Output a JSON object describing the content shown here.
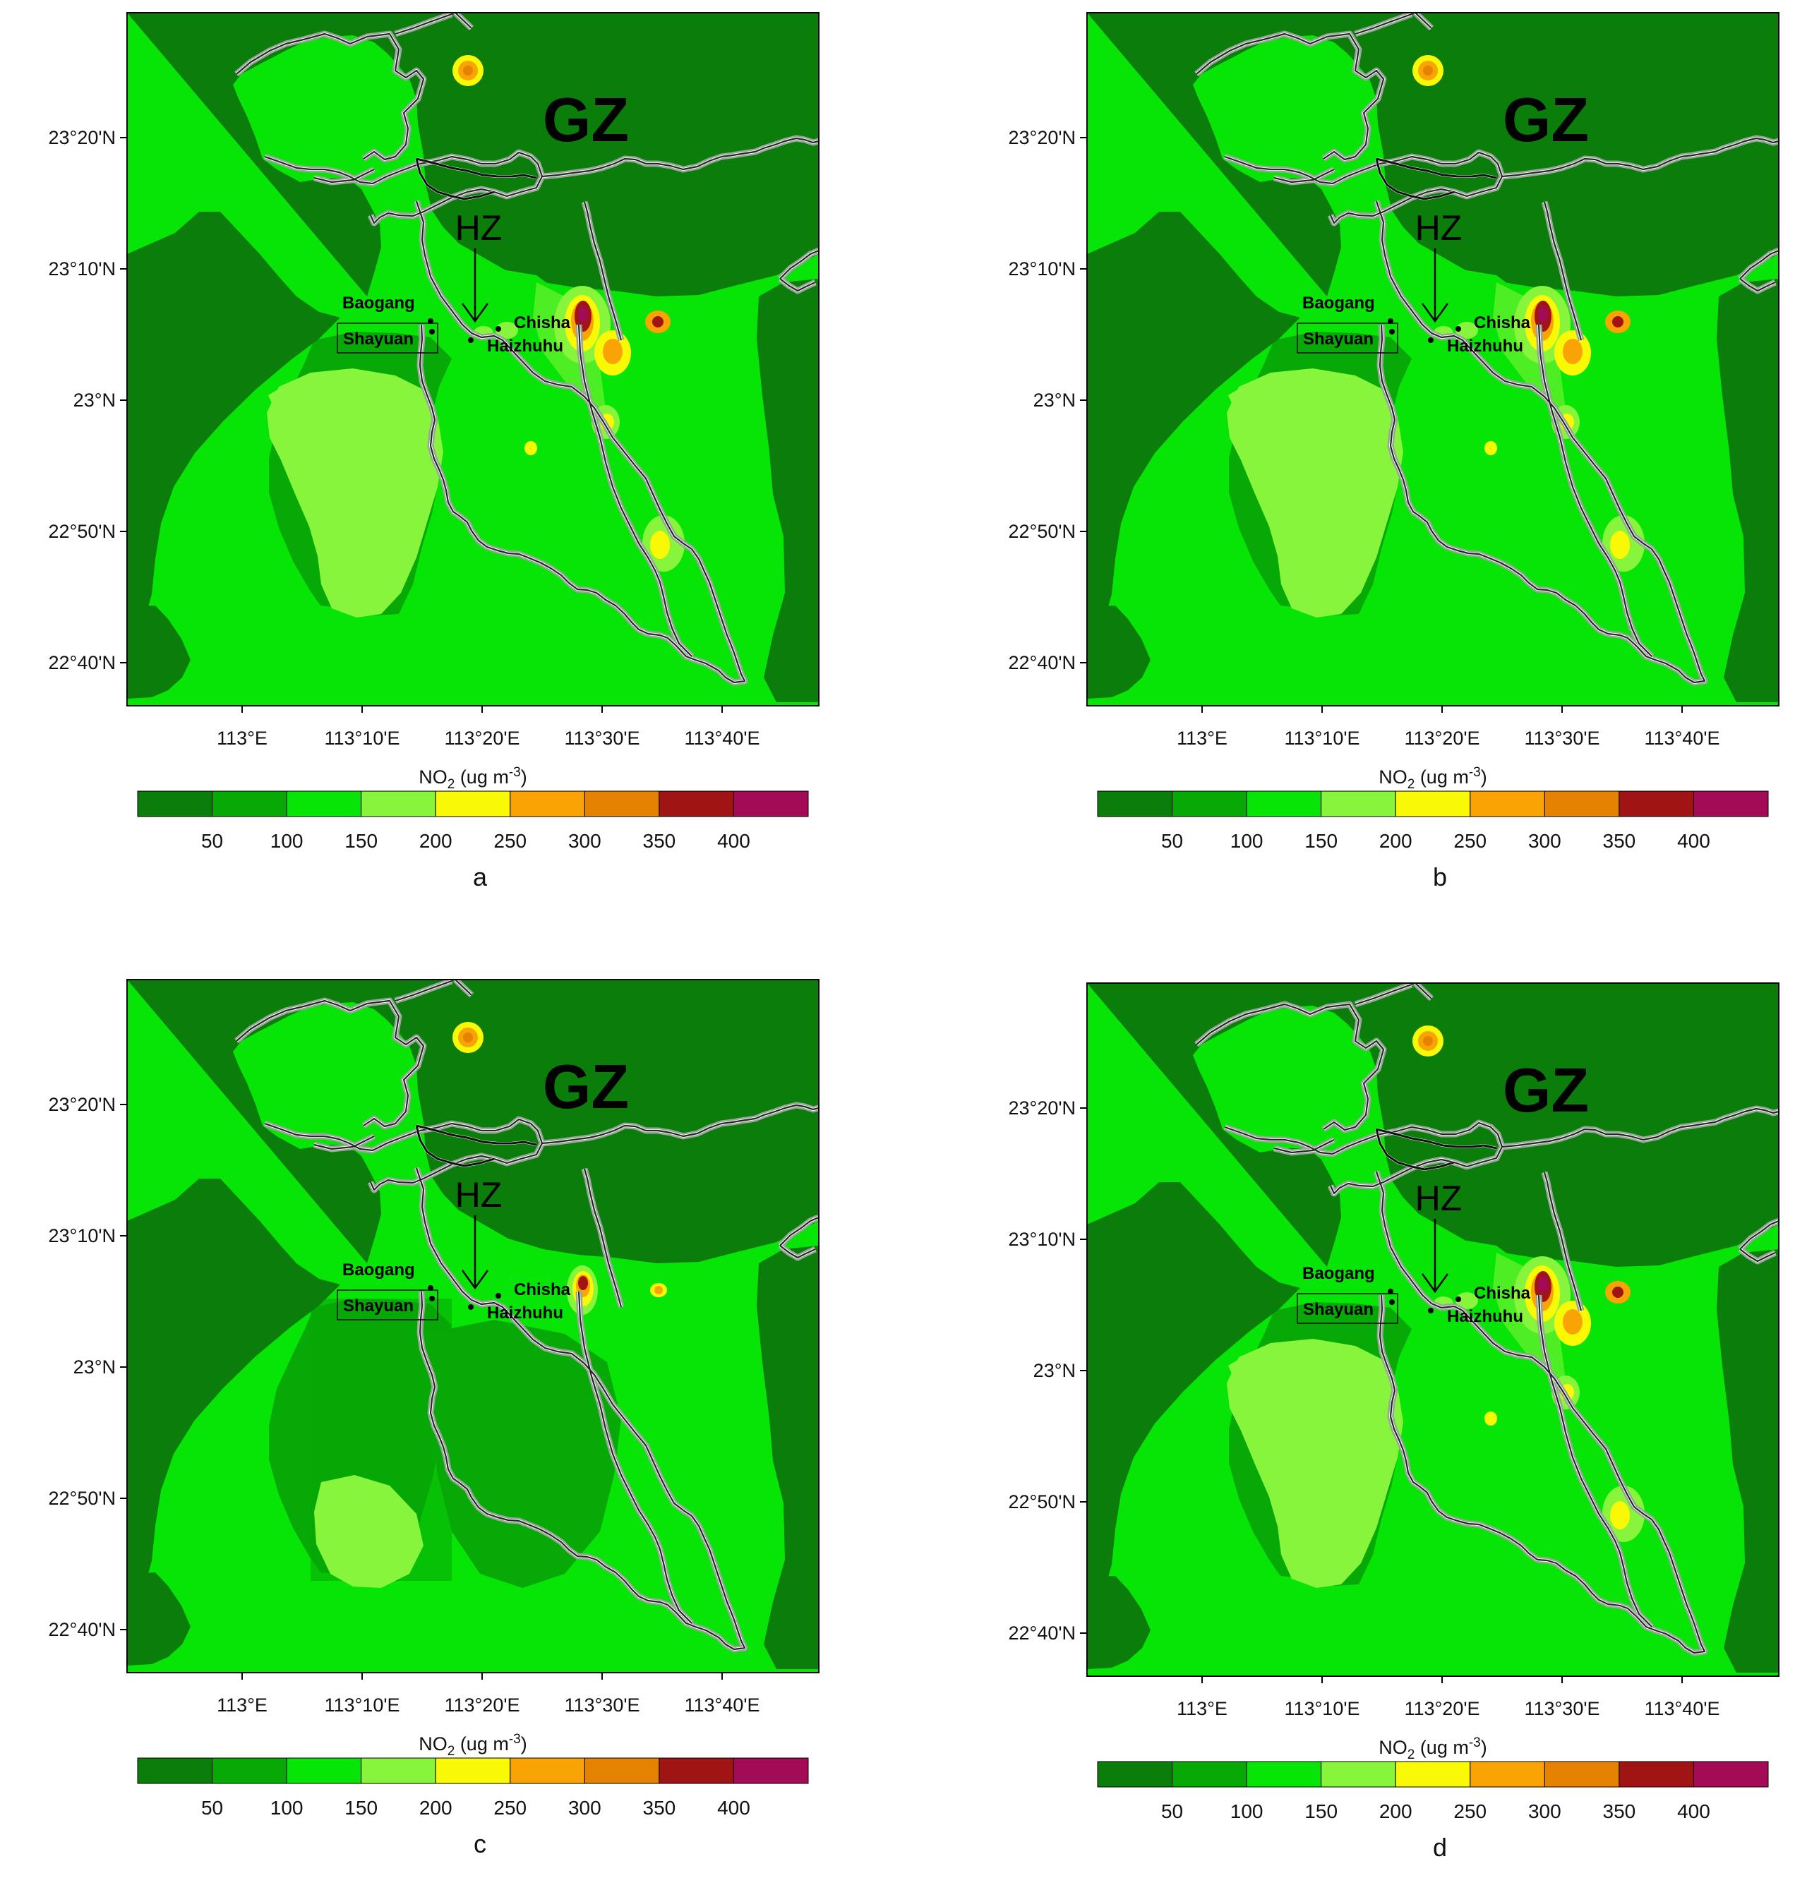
{
  "figure": {
    "panels": [
      {
        "letter": "a",
        "variant": "full"
      },
      {
        "letter": "b",
        "variant": "full"
      },
      {
        "letter": "c",
        "variant": "reduced"
      },
      {
        "letter": "d",
        "variant": "full"
      }
    ],
    "map": {
      "lat_ticks": [
        "23°20'N",
        "23°10'N",
        "23°N",
        "22°50'N",
        "22°40'N"
      ],
      "lon_ticks": [
        "113°E",
        "113°10'E",
        "113°20'E",
        "113°30'E",
        "113°40'E"
      ],
      "region_label": "GZ",
      "district_label": "HZ",
      "sites": [
        "Baogang",
        "Shayuan",
        "Chisha",
        "Haizhuhu"
      ]
    },
    "colorbar": {
      "title_main": "NO",
      "title_sub": "2",
      "title_unit_pre": " (ug m",
      "title_unit_sup": "-3",
      "title_unit_post": ")",
      "tick_labels": [
        "50",
        "100",
        "150",
        "200",
        "250",
        "300",
        "350",
        "400"
      ],
      "colors": [
        "#0a7d0a",
        "#07a907",
        "#07e507",
        "#86f53c",
        "#f9f906",
        "#f9a404",
        "#e58202",
        "#a11414",
        "#a30b56"
      ]
    }
  }
}
